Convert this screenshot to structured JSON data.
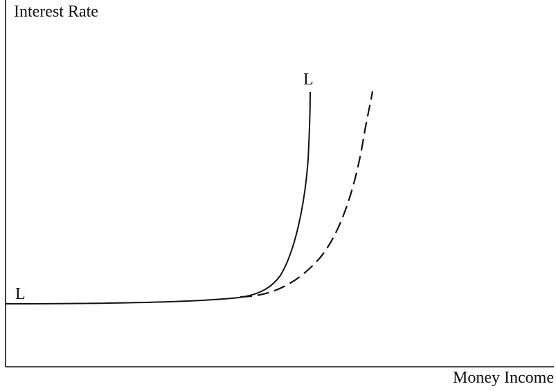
{
  "diagram": {
    "y_axis_label": "Interest Rate",
    "x_axis_label": "Money Income",
    "curve_labels": {
      "solid_start": "L",
      "solid_end": "L"
    },
    "line_color": "#111111",
    "curves": [
      {
        "style": "solid"
      },
      {
        "style": "dashed"
      }
    ]
  }
}
